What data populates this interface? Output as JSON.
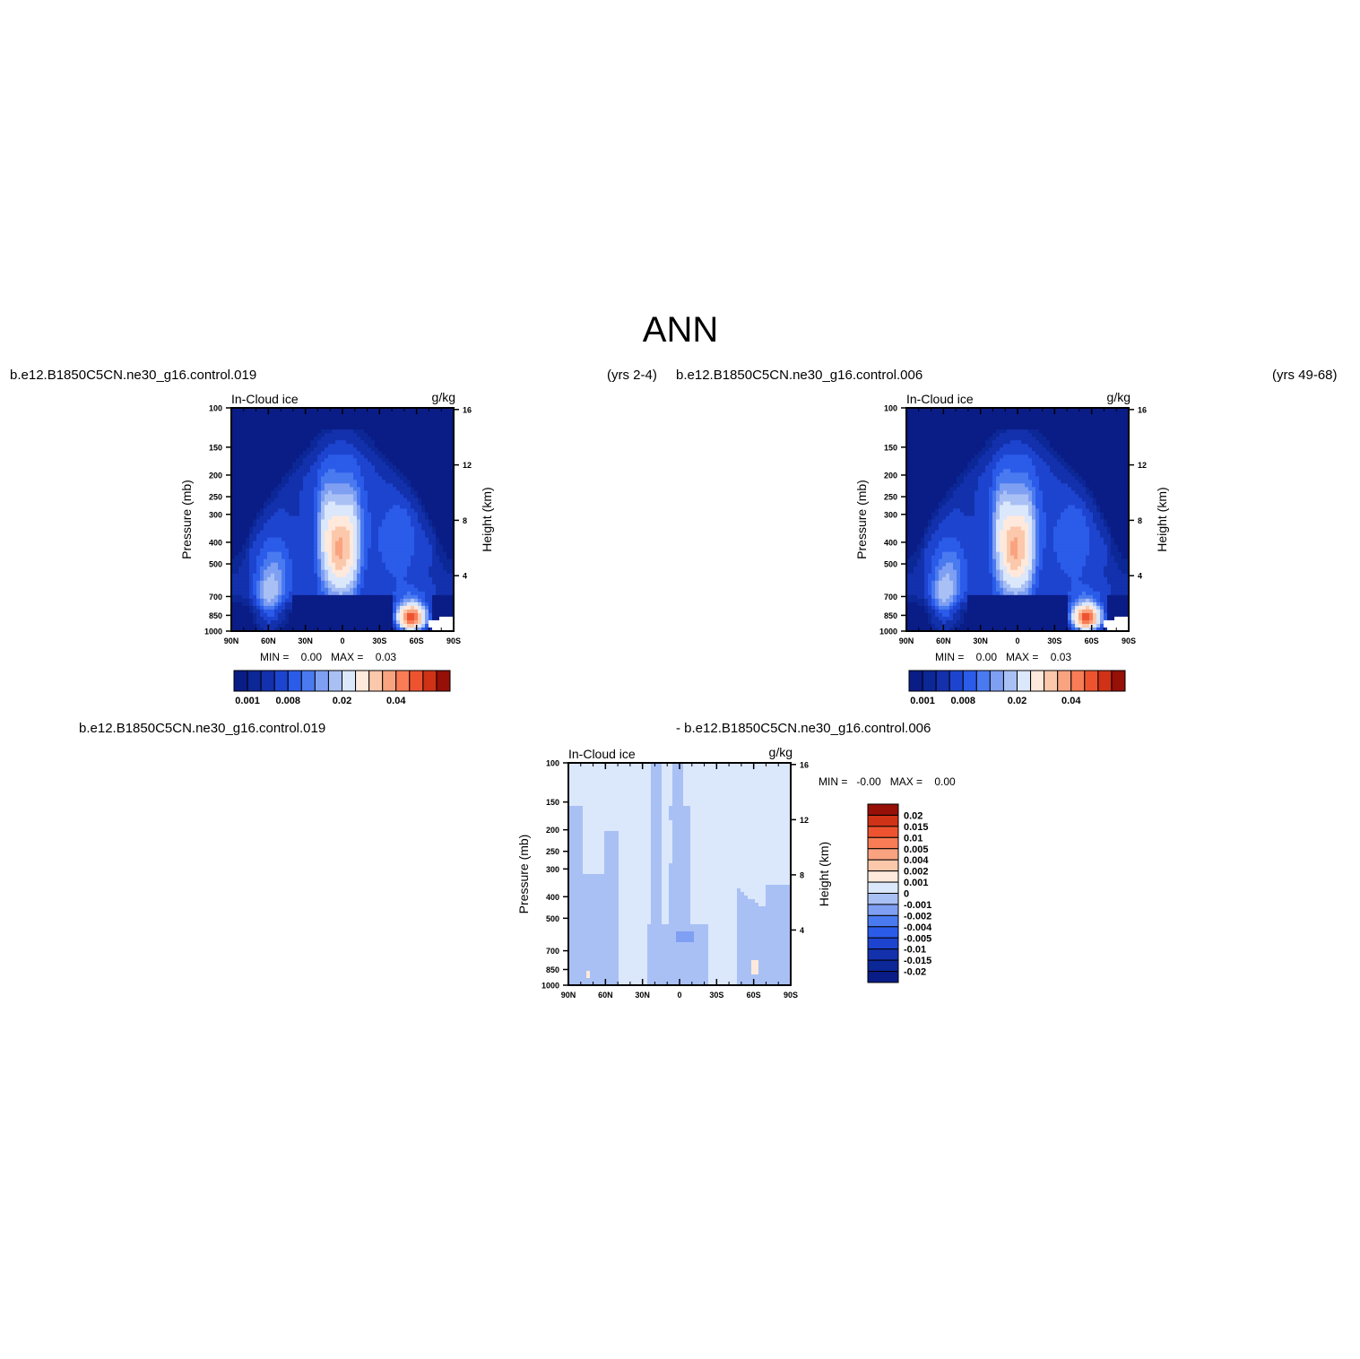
{
  "page": {
    "title": "ANN"
  },
  "panels": [
    {
      "id": "case",
      "case_name": "b.e12.B1850C5CN.ne30_g16.control.019",
      "years": "(yrs 2-4)",
      "variable": "In-Cloud ice",
      "units": "g/kg",
      "y_label": "Pressure (mb)",
      "y2_label": "Height (km)",
      "min_max": "MIN =    0.00   MAX =    0.03",
      "colorbar_labels": [
        "0.001",
        "0.008",
        "0.02",
        "0.04"
      ]
    },
    {
      "id": "control",
      "case_name": "b.e12.B1850C5CN.ne30_g16.control.006",
      "years": "(yrs 49-68)",
      "variable": "In-Cloud ice",
      "units": "g/kg",
      "y_label": "Pressure (mb)",
      "y2_label": "Height (km)",
      "min_max": "MIN =    0.00   MAX =    0.03",
      "colorbar_labels": [
        "0.001",
        "0.008",
        "0.02",
        "0.04"
      ]
    },
    {
      "id": "difference",
      "case_name": "b.e12.B1850C5CN.ne30_g16.control.019",
      "minus_label": "- b.e12.B1850C5CN.ne30_g16.control.006",
      "variable": "In-Cloud ice",
      "units": "g/kg",
      "y_label": "Pressure (mb)",
      "y2_label": "Height (km)",
      "min_max": "MIN =   -0.00   MAX =    0.00",
      "colorbar_labels": [
        "0.02",
        "0.015",
        "0.01",
        "0.005",
        "0.004",
        "0.002",
        "0.001",
        "0",
        "-0.001",
        "-0.002",
        "-0.004",
        "-0.005",
        "-0.01",
        "-0.015",
        "-0.02"
      ]
    }
  ],
  "chart_data": {
    "type": "heatmap",
    "x_ticks": [
      "90N",
      "60N",
      "30N",
      "0",
      "30S",
      "60S",
      "90S"
    ],
    "x_range": [
      90,
      -90
    ],
    "y_ticks": [
      "100",
      "150",
      "200",
      "250",
      "300",
      "400",
      "500",
      "700",
      "850",
      "1000"
    ],
    "y_tick_values": [
      100,
      150,
      200,
      250,
      300,
      400,
      500,
      700,
      850,
      1000
    ],
    "y_scale": "log",
    "y_range": [
      1000,
      100
    ],
    "y2_ticks": [
      "16",
      "12",
      "8",
      "4"
    ],
    "y2_tick_values": [
      16,
      12,
      8,
      4
    ],
    "mean_levels": [
      0.001,
      0.002,
      0.004,
      0.006,
      0.008,
      0.01,
      0.012,
      0.015,
      0.02,
      0.025,
      0.03,
      0.035,
      0.04,
      0.045
    ],
    "mean_colors": [
      "#0a1c86",
      "#0c2796",
      "#1331ac",
      "#1d44cf",
      "#2b5be9",
      "#4a7af0",
      "#7f9ff2",
      "#a9c0f5",
      "#dbe7fb",
      "#fee9dc",
      "#fcc8ab",
      "#faa381",
      "#f87c56",
      "#ee5330",
      "#cf3216",
      "#961008"
    ],
    "diff_levels": [
      -0.02,
      -0.015,
      -0.01,
      -0.005,
      -0.004,
      -0.002,
      -0.001,
      0,
      0.001,
      0.002,
      0.004,
      0.005,
      0.01,
      0.015,
      0.02
    ],
    "diff_colors": [
      "#0a1c86",
      "#0c2796",
      "#1331ac",
      "#1d44cf",
      "#2b5be9",
      "#4a7af0",
      "#7f9ff2",
      "#a9c0f5",
      "#dbe7fb",
      "#fee9dc",
      "#fcc8ab",
      "#faa381",
      "#f87c56",
      "#ee5330",
      "#cf3216",
      "#961008"
    ]
  }
}
